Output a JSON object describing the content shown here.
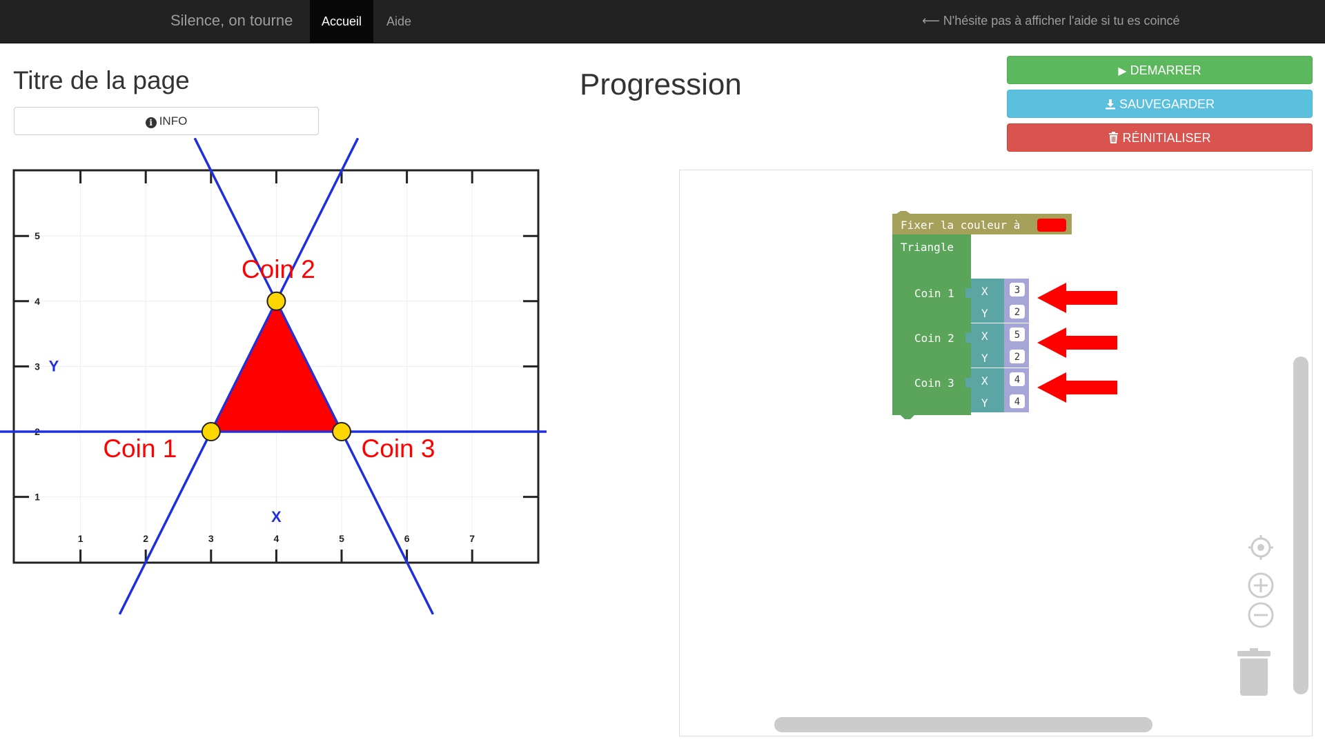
{
  "navbar": {
    "brand": "Silence, on tourne",
    "tabs": [
      {
        "label": "Accueil",
        "active": true
      },
      {
        "label": "Aide",
        "active": false
      }
    ],
    "hint": "⟵ N'hésite pas à afficher l'aide si tu es coincé"
  },
  "left": {
    "title": "Titre de la page",
    "info_label": "INFO"
  },
  "graph": {
    "x_ticks": [
      "1",
      "2",
      "3",
      "4",
      "5",
      "6",
      "7"
    ],
    "y_ticks": [
      "1",
      "2",
      "3",
      "4",
      "5"
    ],
    "x_axis_label": "X",
    "y_axis_label": "Y",
    "corner_labels": [
      "Coin 1",
      "Coin 2",
      "Coin 3"
    ],
    "triangle_color": "#ff0000",
    "line_color": "#1f2fe0",
    "point_color": "#ffd700"
  },
  "right": {
    "title": "Progression",
    "start_label": "DEMARRER",
    "save_label": "SAUVEGARDER",
    "reset_label": "RÉINITIALISER",
    "start_color": "#5cb85c",
    "save_color": "#5bc0de",
    "reset_color": "#d9534f"
  },
  "blocks": {
    "color_block_label": "Fixer la couleur à",
    "color_value": "#ff0000",
    "triangle_label": "Triangle",
    "corners": [
      {
        "label": "Coin 1",
        "x_label": "X",
        "y_label": "Y",
        "x": "3",
        "y": "2"
      },
      {
        "label": "Coin 2",
        "x_label": "X",
        "y_label": "Y",
        "x": "5",
        "y": "2"
      },
      {
        "label": "Coin 3",
        "x_label": "X",
        "y_label": "Y",
        "x": "4",
        "y": "4"
      }
    ]
  }
}
